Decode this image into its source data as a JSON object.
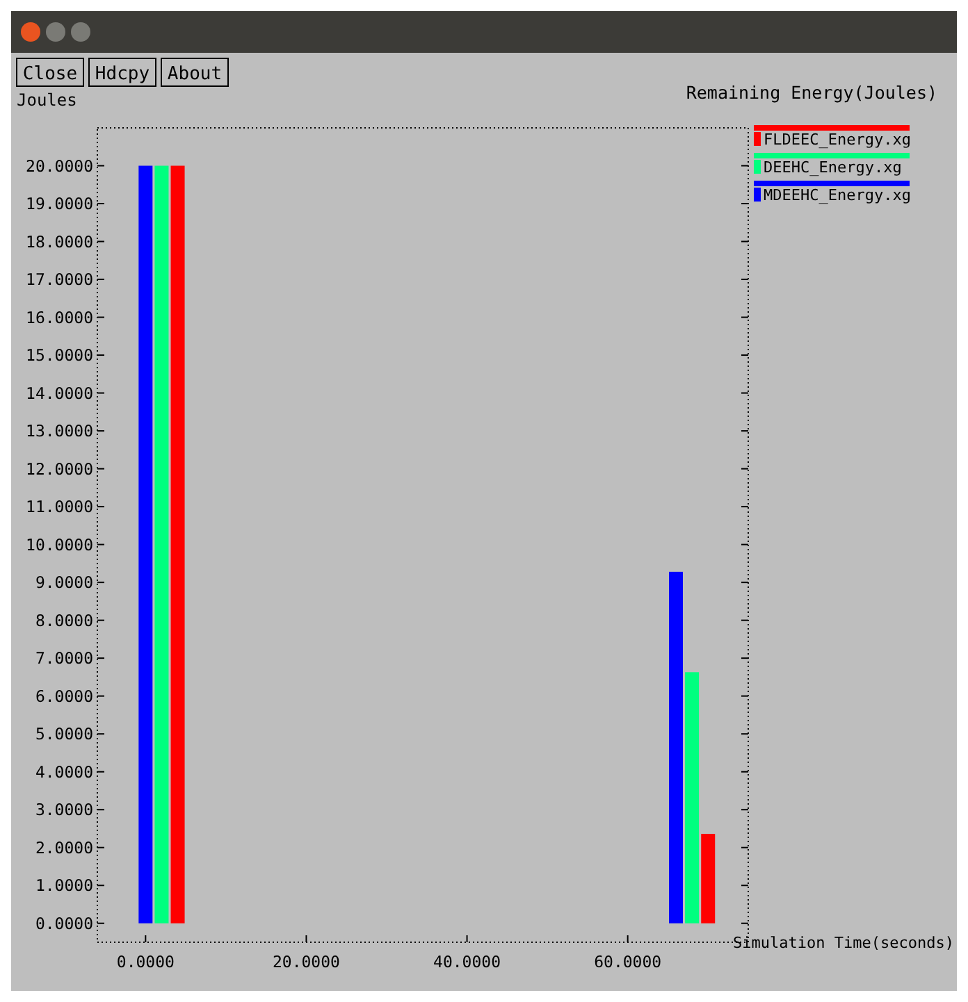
{
  "chart_data": {
    "type": "bar",
    "title": "Remaining Energy(Joules)",
    "ylabel": "Joules",
    "xlabel": "Simulation Time(seconds)",
    "annotations": [
      "Close",
      "Hdcpy",
      "About"
    ],
    "series": [
      {
        "name": "FLDEEC_Energy.xg",
        "color": "#ff0000",
        "x": [
          4,
          70
        ],
        "values": [
          20.0,
          2.36
        ]
      },
      {
        "name": "DEEHC_Energy.xg",
        "color": "#00ff7f",
        "x": [
          2,
          68
        ],
        "values": [
          20.0,
          6.63
        ]
      },
      {
        "name": "MDEEHC_Energy.xg",
        "color": "#0000ff",
        "x": [
          0,
          66
        ],
        "values": [
          20.0,
          9.28
        ]
      }
    ],
    "xlim": [
      -6,
      75
    ],
    "xticks": [
      {
        "value": 0,
        "label": "0.0000"
      },
      {
        "value": 20,
        "label": "20.0000"
      },
      {
        "value": 40,
        "label": "40.0000"
      },
      {
        "value": 60,
        "label": "60.0000"
      }
    ],
    "ylim": [
      -0.5,
      21
    ],
    "yticks": [
      {
        "value": 0,
        "label": "0.0000"
      },
      {
        "value": 1,
        "label": "1.0000"
      },
      {
        "value": 2,
        "label": "2.0000"
      },
      {
        "value": 3,
        "label": "3.0000"
      },
      {
        "value": 4,
        "label": "4.0000"
      },
      {
        "value": 5,
        "label": "5.0000"
      },
      {
        "value": 6,
        "label": "6.0000"
      },
      {
        "value": 7,
        "label": "7.0000"
      },
      {
        "value": 8,
        "label": "8.0000"
      },
      {
        "value": 9,
        "label": "9.0000"
      },
      {
        "value": 10,
        "label": "10.0000"
      },
      {
        "value": 11,
        "label": "11.0000"
      },
      {
        "value": 12,
        "label": "12.0000"
      },
      {
        "value": 13,
        "label": "13.0000"
      },
      {
        "value": 14,
        "label": "14.0000"
      },
      {
        "value": 15,
        "label": "15.0000"
      },
      {
        "value": 16,
        "label": "16.0000"
      },
      {
        "value": 17,
        "label": "17.0000"
      },
      {
        "value": 18,
        "label": "18.0000"
      },
      {
        "value": 19,
        "label": "19.0000"
      },
      {
        "value": 20,
        "label": "20.0000"
      }
    ],
    "grid": false,
    "legend": "right"
  }
}
